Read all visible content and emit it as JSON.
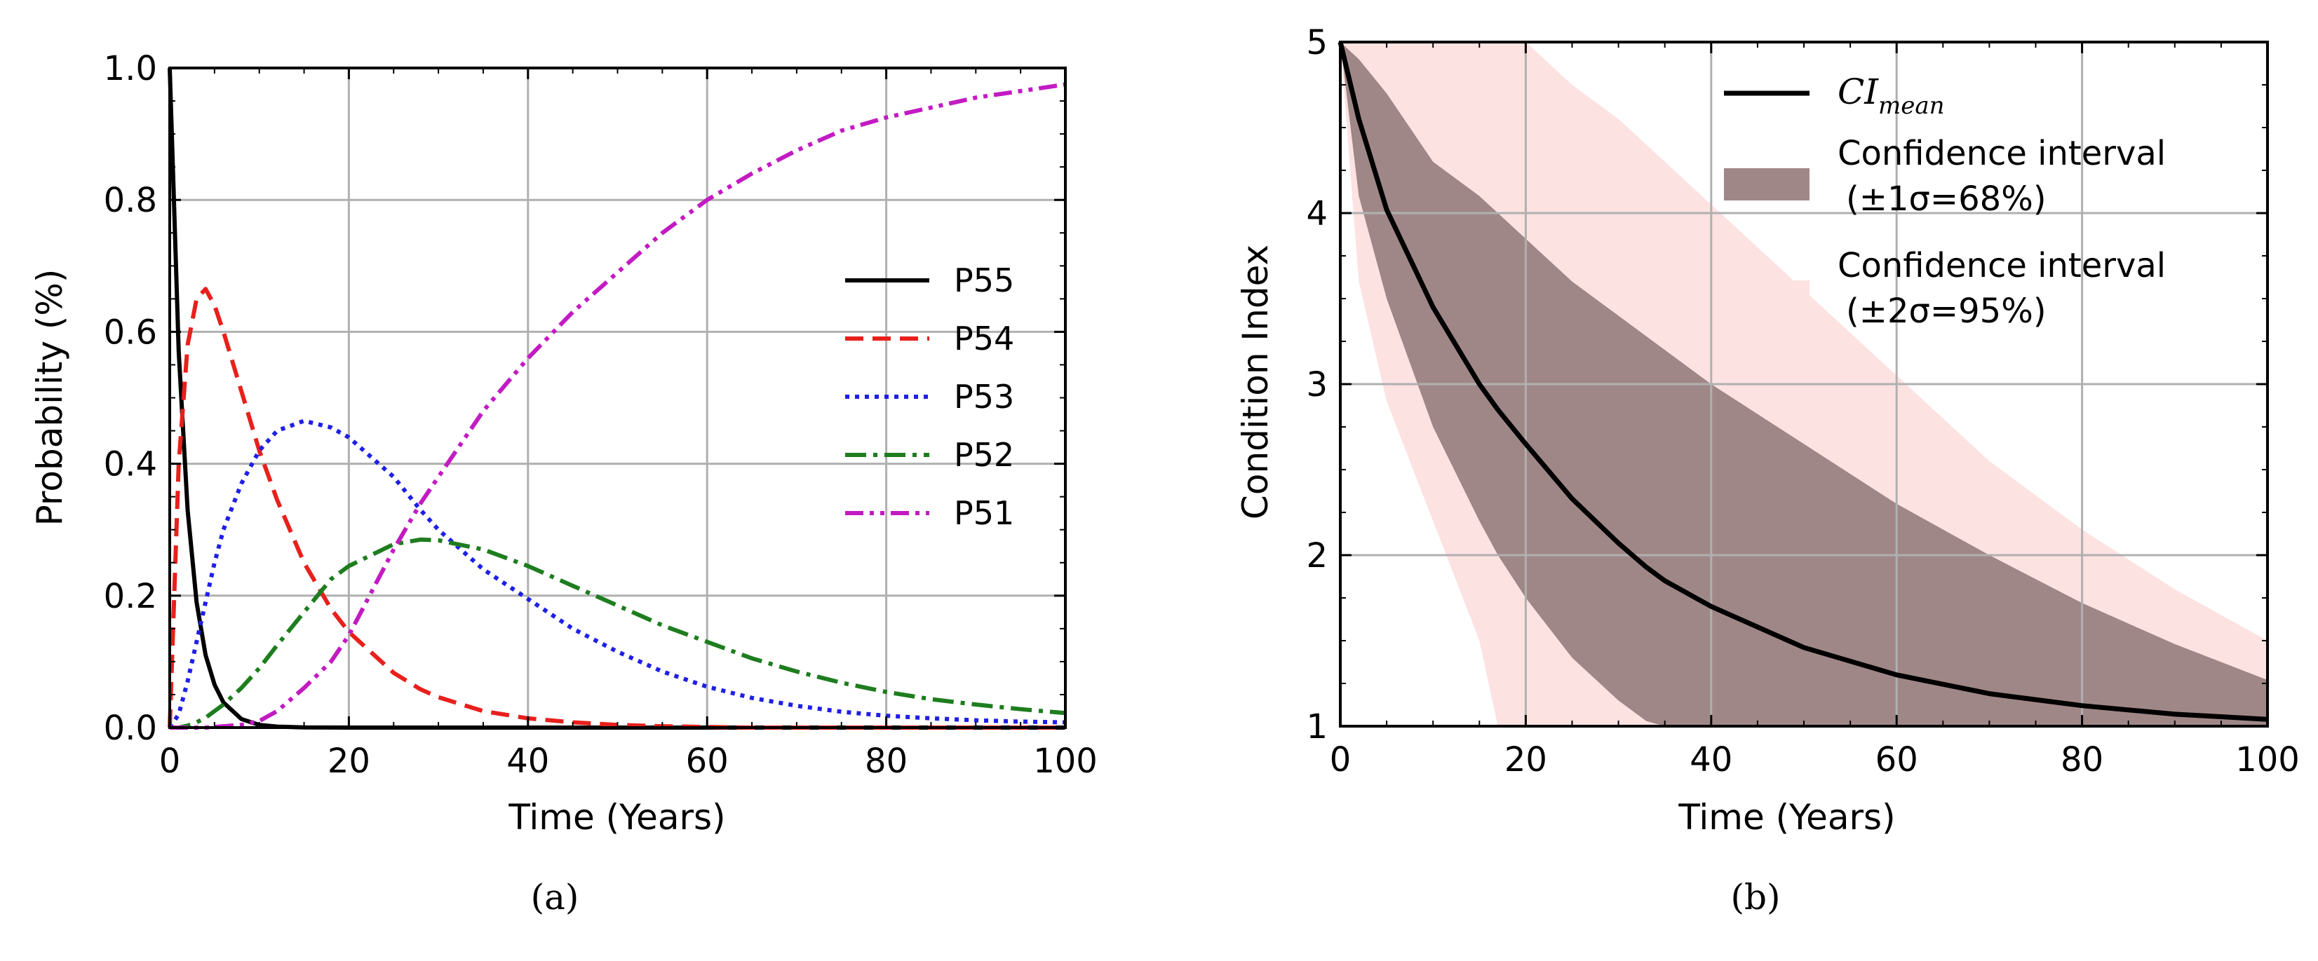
{
  "chart_data": [
    {
      "type": "line",
      "caption": "(a)",
      "xlabel": "Time (Years)",
      "ylabel": "Probability (%)",
      "xlim": [
        0,
        100
      ],
      "ylim": [
        0,
        1
      ],
      "xticks": [
        0,
        20,
        40,
        60,
        80,
        100
      ],
      "yticks": [
        0.0,
        0.2,
        0.4,
        0.6,
        0.8,
        1.0
      ],
      "ytick_labels": [
        "0.0",
        "0.2",
        "0.4",
        "0.6",
        "0.8",
        "1.0"
      ],
      "grid": true,
      "legend_position": "center-right",
      "x": [
        0,
        1,
        2,
        3,
        4,
        5,
        6,
        8,
        10,
        12,
        15,
        18,
        20,
        25,
        28,
        30,
        35,
        40,
        45,
        50,
        55,
        60,
        65,
        70,
        75,
        80,
        85,
        90,
        95,
        100
      ],
      "series": [
        {
          "name": "P55",
          "color": "#000000",
          "dash": "solid",
          "values": [
            1.0,
            0.57,
            0.33,
            0.19,
            0.11,
            0.065,
            0.038,
            0.013,
            0.004,
            0.0015,
            0.0003,
            0.0001,
            0,
            0,
            0,
            0,
            0,
            0,
            0,
            0,
            0,
            0,
            0,
            0,
            0,
            0,
            0,
            0,
            0,
            0
          ]
        },
        {
          "name": "P54",
          "color": "#e8201c",
          "dash": "dashed",
          "values": [
            0.0,
            0.4,
            0.58,
            0.65,
            0.665,
            0.64,
            0.6,
            0.51,
            0.42,
            0.345,
            0.25,
            0.18,
            0.145,
            0.083,
            0.058,
            0.046,
            0.025,
            0.014,
            0.008,
            0.004,
            0.002,
            0.001,
            0,
            0,
            0,
            0,
            0,
            0,
            0,
            0
          ]
        },
        {
          "name": "P53",
          "color": "#1f1fe6",
          "dash": "dotted",
          "values": [
            0.0,
            0.02,
            0.07,
            0.13,
            0.19,
            0.25,
            0.3,
            0.37,
            0.42,
            0.45,
            0.465,
            0.455,
            0.44,
            0.38,
            0.33,
            0.3,
            0.24,
            0.195,
            0.15,
            0.115,
            0.085,
            0.062,
            0.045,
            0.033,
            0.024,
            0.018,
            0.014,
            0.011,
            0.009,
            0.008
          ]
        },
        {
          "name": "P52",
          "color": "#1e7d1e",
          "dash": "dashdot",
          "values": [
            0.0,
            0.0,
            0.003,
            0.008,
            0.015,
            0.025,
            0.035,
            0.06,
            0.09,
            0.125,
            0.175,
            0.225,
            0.245,
            0.278,
            0.285,
            0.284,
            0.27,
            0.245,
            0.215,
            0.185,
            0.155,
            0.13,
            0.105,
            0.085,
            0.068,
            0.054,
            0.043,
            0.035,
            0.028,
            0.022
          ]
        },
        {
          "name": "P51",
          "color": "#c21bc2",
          "dash": "dashdotdot",
          "values": [
            0.0,
            0.0,
            0.0,
            0.0,
            0.0,
            0.001,
            0.002,
            0.004,
            0.01,
            0.025,
            0.06,
            0.1,
            0.14,
            0.27,
            0.34,
            0.38,
            0.48,
            0.56,
            0.63,
            0.69,
            0.75,
            0.8,
            0.84,
            0.875,
            0.905,
            0.925,
            0.94,
            0.955,
            0.965,
            0.975
          ]
        }
      ]
    },
    {
      "type": "area",
      "caption": "(b)",
      "xlabel": "Time (Years)",
      "ylabel": "Condition Index",
      "xlim": [
        0,
        100
      ],
      "ylim": [
        1,
        5
      ],
      "xticks": [
        0,
        20,
        40,
        60,
        80,
        100
      ],
      "yticks": [
        1,
        2,
        3,
        4,
        5
      ],
      "grid": true,
      "legend_position": "top-right",
      "x": [
        0,
        2,
        5,
        10,
        15,
        17,
        20,
        25,
        30,
        33,
        35,
        40,
        50,
        60,
        70,
        80,
        90,
        100
      ],
      "mean": {
        "name": "CI",
        "subscript": "mean",
        "color": "#000000",
        "values": [
          5.0,
          4.55,
          4.02,
          3.45,
          3.0,
          2.85,
          2.65,
          2.33,
          2.07,
          1.93,
          1.85,
          1.7,
          1.46,
          1.3,
          1.19,
          1.12,
          1.07,
          1.04
        ]
      },
      "bands": [
        {
          "name": "Confidence interval",
          "detail": "(±1σ=68%)",
          "color": "#a08787",
          "upper": [
            5.0,
            4.9,
            4.7,
            4.3,
            4.1,
            4.0,
            3.85,
            3.6,
            3.4,
            3.28,
            3.2,
            3.0,
            2.65,
            2.3,
            2.0,
            1.72,
            1.48,
            1.27
          ],
          "lower": [
            5.0,
            4.1,
            3.5,
            2.75,
            2.2,
            2.0,
            1.75,
            1.4,
            1.15,
            1.03,
            1.0,
            1.0,
            1.0,
            1.0,
            1.0,
            1.0,
            1.0,
            1.0
          ]
        },
        {
          "name": "Confidence interval",
          "detail": "(±2σ=95%)",
          "color": "#fde2e2",
          "upper": [
            5.0,
            5.0,
            5.0,
            5.0,
            5.0,
            5.0,
            5.0,
            4.75,
            4.55,
            4.4,
            4.3,
            4.05,
            3.55,
            3.05,
            2.55,
            2.15,
            1.8,
            1.5
          ],
          "lower": [
            5.0,
            3.6,
            2.9,
            2.2,
            1.5,
            1.0,
            1.0,
            1.0,
            1.0,
            1.0,
            1.0,
            1.0,
            1.0,
            1.0,
            1.0,
            1.0,
            1.0,
            1.0
          ]
        }
      ]
    }
  ]
}
